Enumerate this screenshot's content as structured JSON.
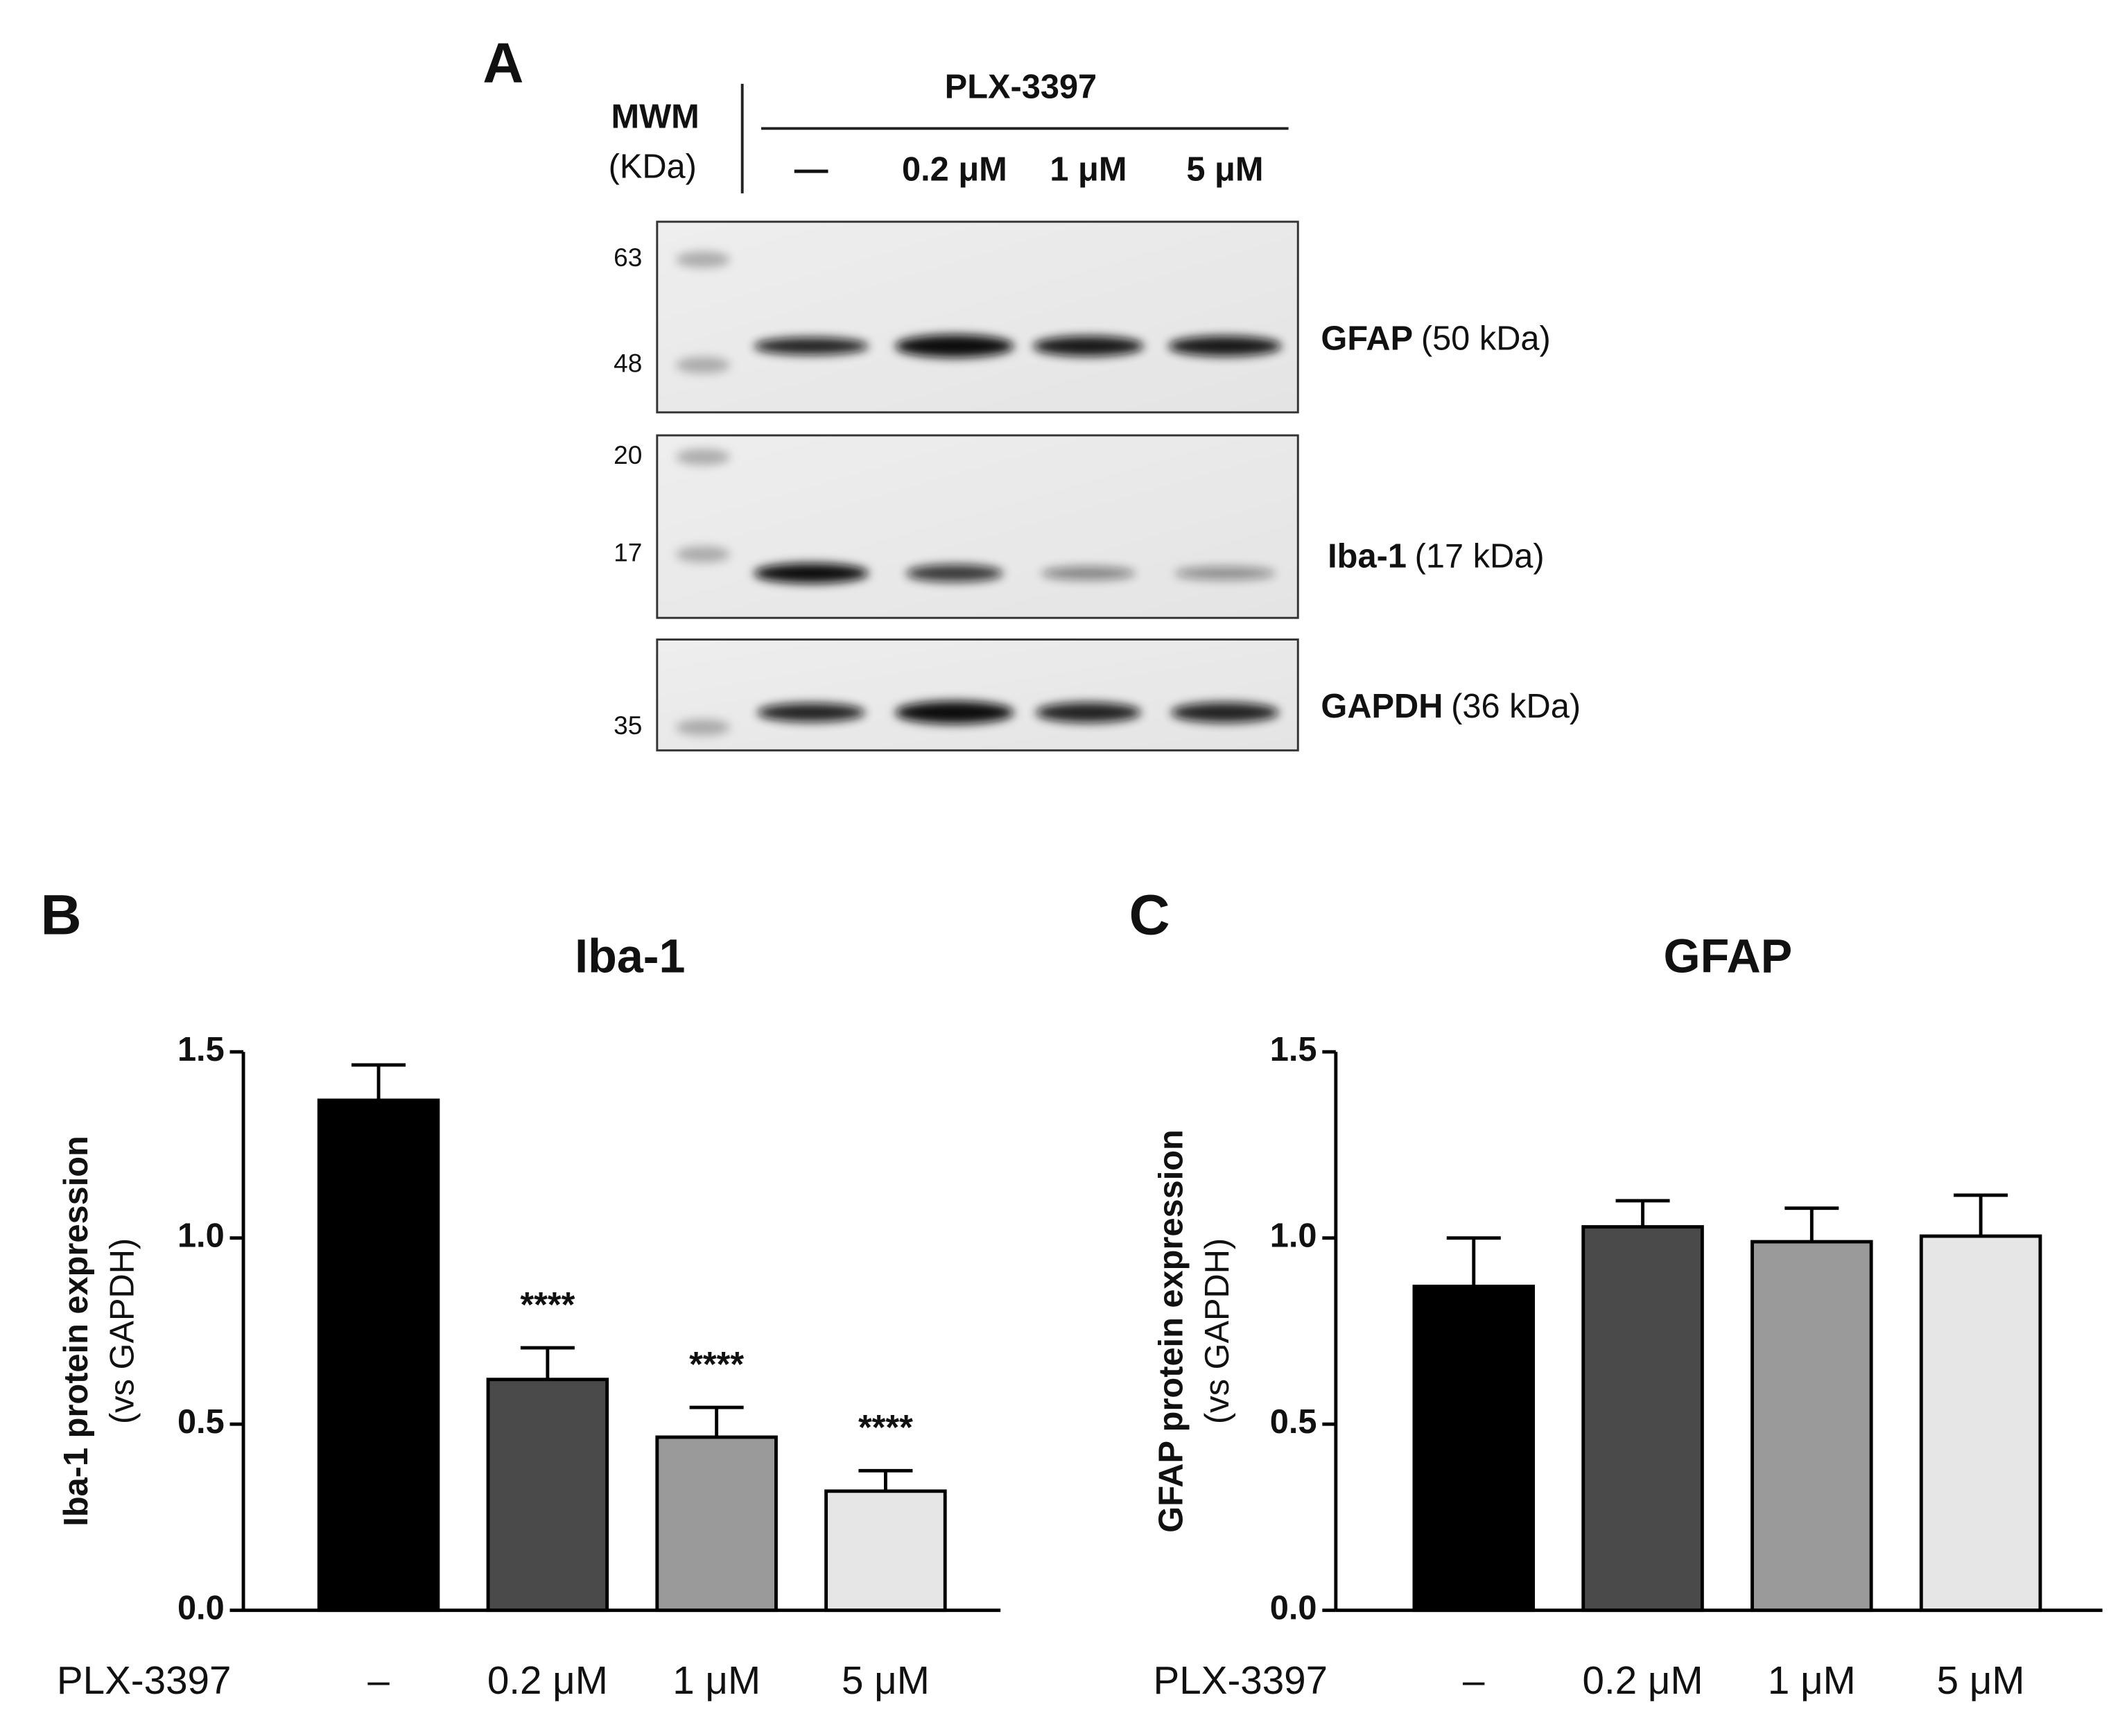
{
  "panel_a": {
    "label": "A",
    "mwm": "MWM",
    "mwm_unit": "(KDa)",
    "treatment": "PLX-3397",
    "lanes": [
      "—",
      "0.2 μM",
      "1 μM",
      "5 μM"
    ],
    "blots": [
      {
        "markers": [
          "63",
          "48"
        ],
        "protein": "GFAP",
        "size": "(50 kDa)"
      },
      {
        "markers": [
          "20",
          "17"
        ],
        "protein": "Iba-1",
        "size": "(17 kDa)"
      },
      {
        "markers": [
          "35"
        ],
        "protein": "GAPDH",
        "size": "(36 kDa)"
      }
    ]
  },
  "chart_data": [
    {
      "type": "bar",
      "panel": "B",
      "title": "Iba-1",
      "y_label": "Iba-1 protein expression",
      "y_sublabel": "(vs GAPDH)",
      "x_label": "PLX-3397",
      "categories": [
        "–",
        "0.2 μM",
        "1 μM",
        "5 μM"
      ],
      "values": [
        1.37,
        0.62,
        0.465,
        0.32
      ],
      "errors": [
        0.095,
        0.085,
        0.08,
        0.055
      ],
      "significance": [
        null,
        "****",
        "****",
        "****"
      ],
      "colors": [
        "#000000",
        "#4a4a4a",
        "#9a9a9a",
        "#e6e6e6"
      ],
      "ylim": [
        0,
        1.5
      ],
      "yticks": [
        {
          "value": 0,
          "label": "0.0"
        },
        0.5,
        {
          "value": 1,
          "label": "1.0"
        },
        1.5
      ]
    },
    {
      "type": "bar",
      "panel": "C",
      "title": "GFAP",
      "y_label": "GFAP protein expression",
      "y_sublabel": "(vs GAPDH)",
      "x_label": "PLX-3397",
      "categories": [
        "–",
        "0.2 μM",
        "1 μM",
        "5 μM"
      ],
      "values": [
        0.87,
        1.03,
        0.99,
        1.005
      ],
      "errors": [
        0.13,
        0.07,
        0.09,
        0.11
      ],
      "colors": [
        "#000000",
        "#4a4a4a",
        "#9a9a9a",
        "#e6e6e6"
      ],
      "ylim": [
        0,
        1.5
      ],
      "yticks": [
        {
          "value": 0,
          "label": "0.0"
        },
        0.5,
        {
          "value": 1,
          "label": "1.0"
        },
        1.5
      ]
    }
  ]
}
